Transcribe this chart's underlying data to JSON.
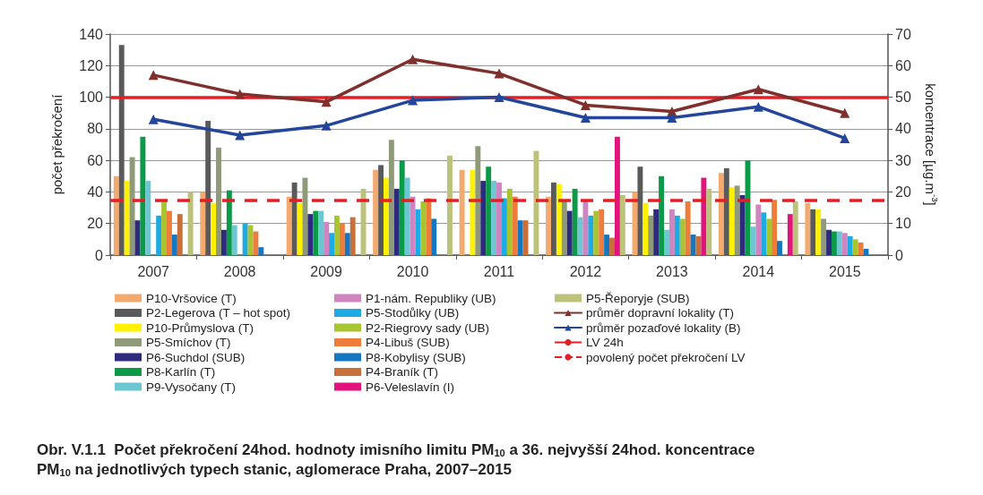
{
  "chart_data": {
    "type": "bar",
    "title": "Obr. V.1.1  Počet překročení 24hod. hodnoty imisního limitu PM$_{10}$ a 36. nejvyšší 24hod. koncentrace\nPM$_{10}$ na jednotlivých typech stanic, aglomerace Praha, 2007–2015",
    "ylabel": "počet překročení",
    "y2label": "koncentrace [µg.m$^{-3}$]",
    "categories": [
      "2007",
      "2008",
      "2009",
      "2010",
      "2011",
      "2012",
      "2013",
      "2014",
      "2015"
    ],
    "ylim": [
      0,
      140
    ],
    "yticks": [
      0,
      20,
      40,
      60,
      80,
      100,
      120,
      140
    ],
    "y2lim": [
      0,
      70
    ],
    "y2ticks": [
      0,
      10,
      20,
      30,
      40,
      50,
      60,
      70
    ],
    "grid": "y",
    "legend": "bottom",
    "series": [
      {
        "name": "P10-Vršovice (T)",
        "color": "#f4a96e",
        "values": [
          50,
          40,
          37,
          54,
          54,
          37,
          40,
          52,
          33
        ]
      },
      {
        "name": "P2-Legerova (T – hot spot)",
        "color": "#5a5a5a",
        "values": [
          133,
          85,
          46,
          57,
          null,
          46,
          56,
          55,
          29
        ]
      },
      {
        "name": "P10-Průmyslova (T)",
        "color": "#fff200",
        "values": [
          47,
          33,
          33,
          49,
          54,
          45,
          33,
          43,
          29
        ]
      },
      {
        "name": "P5-Smíchov (T)",
        "color": "#8f9a78",
        "values": [
          62,
          68,
          49,
          73,
          69,
          34,
          25,
          44,
          23
        ]
      },
      {
        "name": "P6-Suchdol (SUB)",
        "color": "#2e2a7e",
        "values": [
          22,
          16,
          26,
          42,
          47,
          28,
          29,
          38,
          16
        ]
      },
      {
        "name": "P8-Karlín (T)",
        "color": "#0a9a48",
        "values": [
          75,
          41,
          28,
          60,
          56,
          42,
          50,
          60,
          15
        ]
      },
      {
        "name": "P9-Vysočany (T)",
        "color": "#6cc7d2",
        "values": [
          47,
          19,
          28,
          49,
          47,
          24,
          16,
          18,
          15
        ]
      },
      {
        "name": "P1-nám. Republiky (UB)",
        "color": "#d185c0",
        "values": [
          null,
          null,
          21,
          37,
          46,
          34,
          29,
          32,
          14
        ]
      },
      {
        "name": "P5-Stodůlky (UB)",
        "color": "#1eaae2",
        "values": [
          25,
          20,
          14,
          29,
          36,
          25,
          25,
          27,
          12
        ]
      },
      {
        "name": "P2-Riegrovy sady (UB)",
        "color": "#a8c531",
        "values": [
          34,
          19,
          25,
          34,
          42,
          28,
          23,
          23,
          10
        ]
      },
      {
        "name": "P4-Libuš (SUB)",
        "color": "#ee7d3b",
        "values": [
          28,
          15,
          20,
          36,
          37,
          29,
          34,
          35,
          8
        ]
      },
      {
        "name": "P8-Kobylisy (SUB)",
        "color": "#1577bf",
        "values": [
          13,
          5,
          14,
          23,
          22,
          13,
          13,
          9,
          4
        ]
      },
      {
        "name": "P4-Braník (T)",
        "color": "#c9703a",
        "values": [
          26,
          null,
          24,
          null,
          22,
          11,
          12,
          null,
          null
        ]
      },
      {
        "name": "P6-Veleslavín (I)",
        "color": "#e3137d",
        "values": [
          null,
          null,
          null,
          null,
          null,
          75,
          49,
          26,
          null
        ]
      },
      {
        "name": "P5-Řeporyje (SUB)",
        "color": "#bcc27a",
        "values": [
          40,
          null,
          42,
          63,
          66,
          38,
          42,
          34,
          null
        ]
      },
      {
        "name": "průměr dopravní lokality (T)",
        "type": "line",
        "axis": "y2",
        "marker": "triangle",
        "color": "#7f2f2c",
        "values": [
          57,
          51,
          48.5,
          62,
          57.5,
          47.5,
          45.5,
          52.5,
          45
        ]
      },
      {
        "name": "průměr pozaďové lokality (B)",
        "type": "line",
        "axis": "y2",
        "marker": "triangle",
        "color": "#24469a",
        "values": [
          43,
          38,
          41,
          49,
          50,
          43.5,
          43.5,
          47,
          37
        ]
      }
    ],
    "ref_lines": [
      {
        "axis": "y",
        "value": 100,
        "label": "LV 24h",
        "color": "#e31e24",
        "line_style": "solid"
      },
      {
        "axis": "y",
        "value": 35,
        "label": "povolený počet překročení LV",
        "color": "#e31e24",
        "line_style": "dashed"
      }
    ]
  }
}
